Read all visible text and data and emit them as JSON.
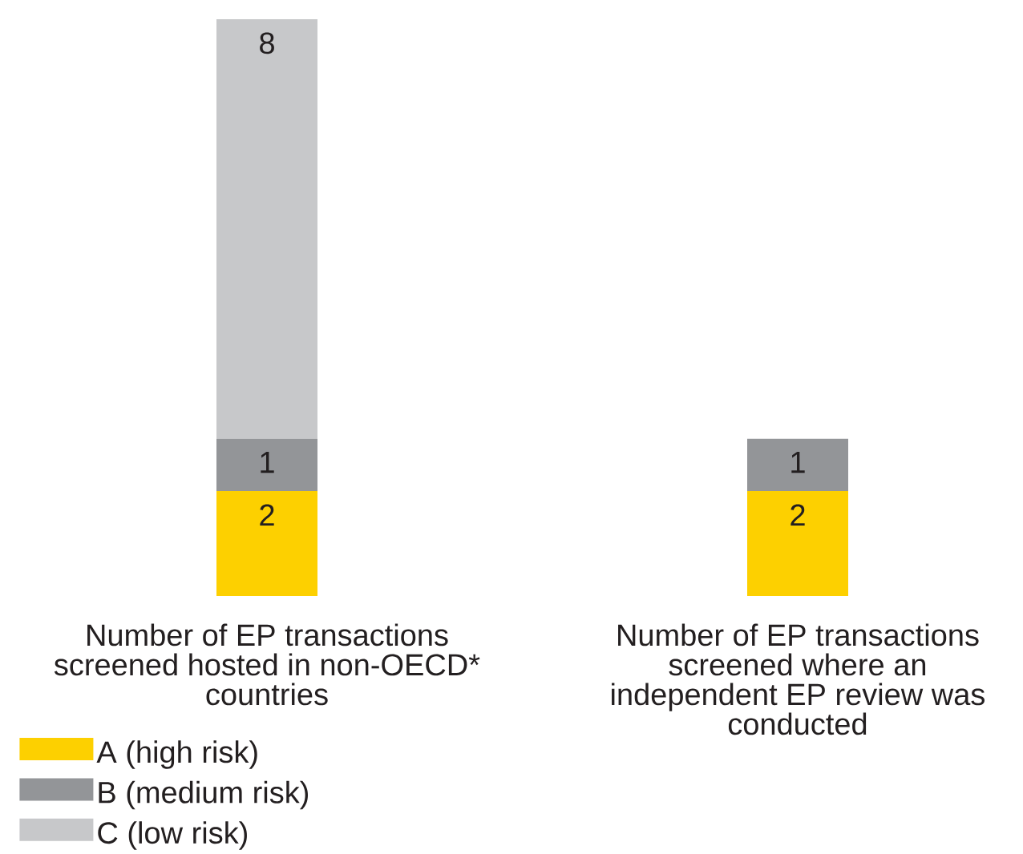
{
  "chart_data": {
    "type": "bar",
    "stacked": true,
    "categories": [
      "Number of EP transactions screened hosted in non-OECD* countries",
      "Number of EP transactions screened where an independent EP review was conducted"
    ],
    "series": [
      {
        "name": "A (high risk)",
        "color": "#fdd000",
        "values": [
          2,
          2
        ]
      },
      {
        "name": "B (medium risk)",
        "color": "#939598",
        "values": [
          1,
          1
        ]
      },
      {
        "name": "C (low risk)",
        "color": "#c7c8ca",
        "values": [
          8,
          null
        ]
      }
    ],
    "data_labels": true,
    "legend": "bottom left"
  }
}
